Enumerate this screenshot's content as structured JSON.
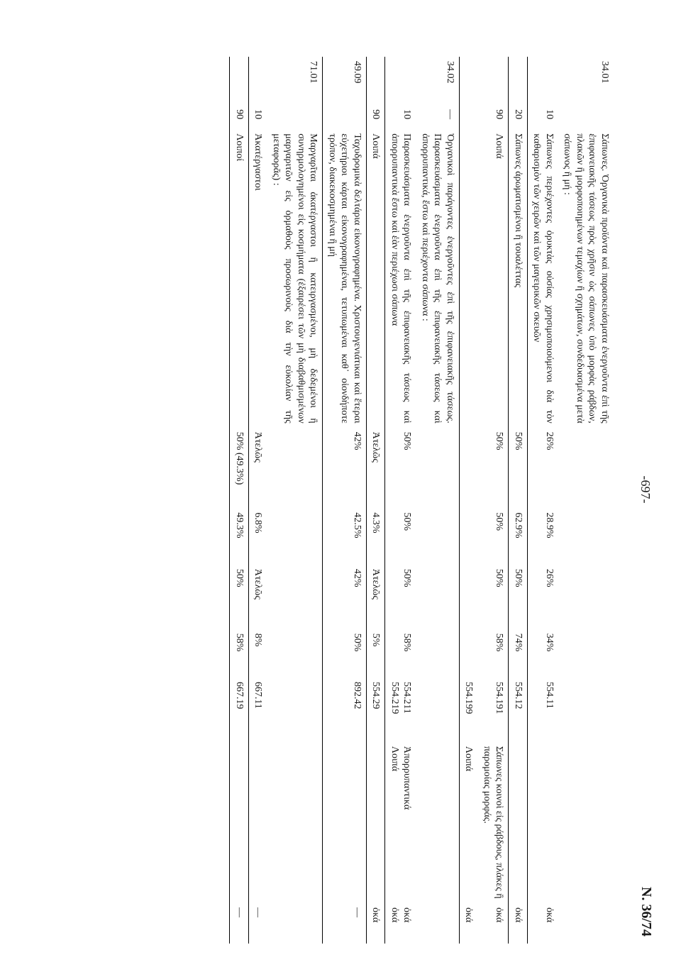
{
  "page": {
    "number": "-697-",
    "law": "N. 36/74"
  },
  "rows": [
    {
      "code": "34.01",
      "sub": "",
      "desc": "Σάπωνες. Ὀργανικὰ προϊόντα καὶ παρασκευάσματα ἐνεργοῦντα ἐπὶ τῆς ἐπιφανειακῆς τάσεως πρὸς χρῆσιν ὡς σάπωνες ὑπὸ μορφὰς ράβδων, πλακῶν ἢ μορφοποιημένων τεμαχίων ἢ σχημάτων, συνδεδυασμένα μετὰ σάπωνος ἢ μή :",
      "p1": "",
      "p2": "",
      "p3": "",
      "p4": "",
      "cn": "",
      "note": "",
      "unit": "",
      "rule": false
    },
    {
      "code": "",
      "sub": "10",
      "desc": "Σάπωνες περιέχοντες ὀρυκτὰς οὐσίας χρησιμοποιούμενοι διὰ τὸν καθαρισμὸν τῶν χειρῶν καὶ τῶν μαγειρικῶν σκευῶν",
      "p1": "26%",
      "p2": "28.9%",
      "p3": "26%",
      "p4": "34%",
      "cn": "554.11",
      "note": "",
      "unit": "ὀκά",
      "rule": true
    },
    {
      "code": "",
      "sub": "20",
      "desc": "Σάπωνες ἀρωματισμένοι ἢ τουαλέττας",
      "p1": "50%",
      "p2": "62.9%",
      "p3": "50%",
      "p4": "74%",
      "cn": "554.12",
      "note": "",
      "unit": "ὀκά",
      "rule": true
    },
    {
      "code": "",
      "sub": "90",
      "desc": "Λοιπά",
      "p1": "50%",
      "p2": "50%",
      "p3": "50%",
      "p4": "58%",
      "cn": "554.191",
      "note": "Σάπωνες κοινοὶ εἰς ράβδους, πλάκες ἢ παρομοίας μορφάς.",
      "unit": "ὀκά",
      "rule": false
    },
    {
      "code": "",
      "sub": "",
      "desc": "",
      "p1": "",
      "p2": "",
      "p3": "",
      "p4": "",
      "cn": "554.199",
      "note": "Λοιπά",
      "unit": "ὀκά",
      "rule": true
    },
    {
      "code": "34.02",
      "sub": "—",
      "desc": "Ὀργανικοὶ παράγοντες ἐνεργοῦντες ἐπὶ τῆς ἐπιφανειακῆς τάσεως. Παρασκευάσματα ἐνεργοῦντα ἐπὶ τῆς ἐπιφανειακῆς τάσεως καὶ ἀπορρυπαντικά, ἔστω καὶ περιέχοντα σάπωνα :",
      "p1": "",
      "p2": "",
      "p3": "",
      "p4": "",
      "cn": "",
      "note": "",
      "unit": "",
      "rule": false
    },
    {
      "code": "",
      "sub": "10",
      "desc": "Παρασκευάσματα ἐνεργοῦντα ἐπὶ τῆς ἐπιφανειακῆς τάσεως καὶ ἀπορρυπαντικὰ ἔστω καὶ ἐὰν περιέχωσι σάπωνα",
      "p1": "50%",
      "p2": "50%",
      "p3": "50%",
      "p4": "58%",
      "cn": "554.211\n554.219",
      "note": "Ἀπορρυπαντικά\nΛοιπά",
      "unit": "ὀκά\nὀκά",
      "rule": true
    },
    {
      "code": "",
      "sub": "90",
      "desc": "Λοιπά",
      "p1": "Ἀτελῶς",
      "p2": "4.3%",
      "p3": "Ἀτελῶς",
      "p4": "5%",
      "cn": "554.29",
      "note": "",
      "unit": "ὀκά",
      "rule": true
    },
    {
      "code": "49.09",
      "sub": "",
      "desc": "Ταχυδρομικὰ δελτάρια εἰκονογραφημένα. Χριστουγενιάτικαι καὶ ἕτεραι εὐχετήριοι κάρται εἰκονογραφημέναι, τετυπωμέναι καθ᾽ οἱονδήποτε τρόπον, διακεκοσμημέναι ἢ μή",
      "p1": "42%",
      "p2": "42.5%",
      "p3": "42%",
      "p4": "50%",
      "cn": "892.42",
      "note": "",
      "unit": "—",
      "rule": true
    },
    {
      "code": "71.01",
      "sub": "",
      "desc": "Μαργαρῖται ἀκατέργαστοι ἢ κατειργασμένοι, μὴ δεδεμένοι ἢ συνηρμολογημένοι εἰς κοσμήματα (ἐξαιρέσει τῶν μὴ διαβαθμισμένων μαργαριτῶν εἰς ὁρμαθοὺς προσωρινοὺς διὰ τὴν εὐκολίαν τῆς μεταφορᾶς) :",
      "p1": "",
      "p2": "",
      "p3": "",
      "p4": "",
      "cn": "",
      "note": "",
      "unit": "",
      "rule": false
    },
    {
      "code": "",
      "sub": "10",
      "desc": "Ἀκατέργαστοι",
      "p1": "Ἀτελῶς",
      "p2": "6.8%",
      "p3": "Ἀτελῶς",
      "p4": "8%",
      "cn": "667.11",
      "note": "",
      "unit": "—",
      "rule": true
    },
    {
      "code": "",
      "sub": "90",
      "desc": "Λοιποί",
      "p1": "50% (49.3%)",
      "p2": "49.3%",
      "p3": "50%",
      "p4": "58%",
      "cn": "667.19",
      "note": "",
      "unit": "—",
      "rule": true
    }
  ]
}
